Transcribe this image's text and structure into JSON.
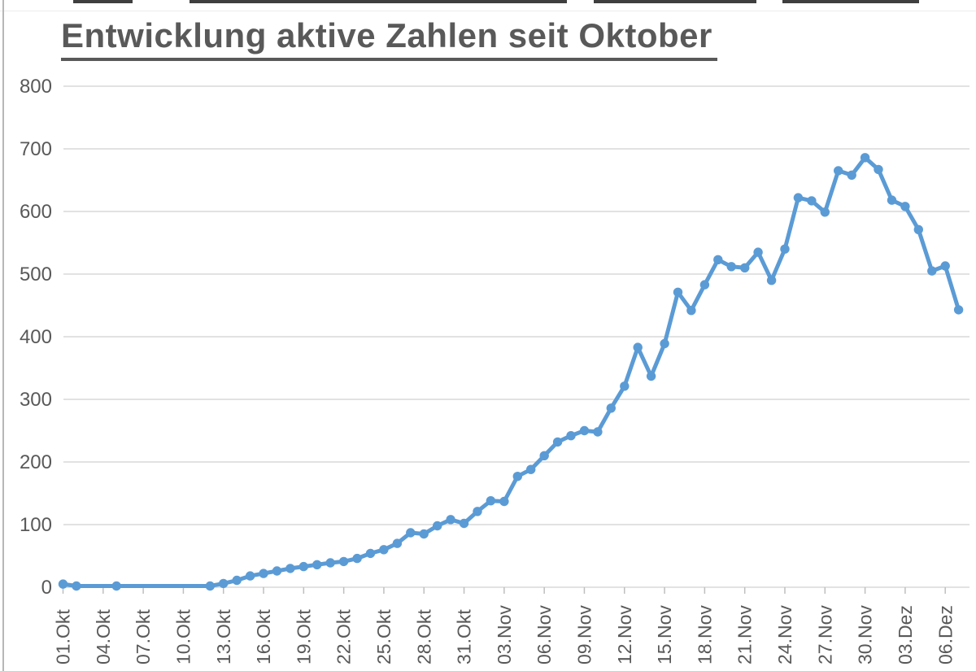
{
  "colors": {
    "series": "#5B9BD5",
    "title_text": "#595959",
    "axis_text": "#595959",
    "gridline": "#d9d9d9",
    "tick_mark": "#bfbfbf"
  },
  "chart_data": {
    "type": "line",
    "title": "Entwicklung aktive Zahlen seit Oktober",
    "legend": "none",
    "grid": "horizontal",
    "ylim": [
      0,
      800
    ],
    "y_ticks": [
      0,
      100,
      200,
      300,
      400,
      500,
      600,
      700,
      800
    ],
    "x_tick_labels": [
      "01.Okt",
      "04.Okt",
      "07.Okt",
      "10.Okt",
      "13.Okt",
      "16.Okt",
      "19.Okt",
      "22.Okt",
      "25.Okt",
      "28.Okt",
      "31.Okt",
      "03.Nov",
      "06.Nov",
      "09.Nov",
      "12.Nov",
      "15.Nov",
      "18.Nov",
      "21.Nov",
      "24.Nov",
      "27.Nov",
      "30.Nov",
      "03.Dez",
      "06.Dez"
    ],
    "x_tick_every_days": 3,
    "series_name": "aktive Zahlen",
    "marker": "circle",
    "dates": [
      "01.Okt",
      "02.Okt",
      "03.Okt",
      "04.Okt",
      "05.Okt",
      "06.Okt",
      "07.Okt",
      "08.Okt",
      "09.Okt",
      "10.Okt",
      "11.Okt",
      "12.Okt",
      "13.Okt",
      "14.Okt",
      "15.Okt",
      "16.Okt",
      "17.Okt",
      "18.Okt",
      "19.Okt",
      "20.Okt",
      "21.Okt",
      "22.Okt",
      "23.Okt",
      "24.Okt",
      "25.Okt",
      "26.Okt",
      "27.Okt",
      "28.Okt",
      "29.Okt",
      "30.Okt",
      "31.Okt",
      "01.Nov",
      "02.Nov",
      "03.Nov",
      "04.Nov",
      "05.Nov",
      "06.Nov",
      "07.Nov",
      "08.Nov",
      "09.Nov",
      "10.Nov",
      "11.Nov",
      "12.Nov",
      "13.Nov",
      "14.Nov",
      "15.Nov",
      "16.Nov",
      "17.Nov",
      "18.Nov",
      "19.Nov",
      "20.Nov",
      "21.Nov",
      "22.Nov",
      "23.Nov",
      "24.Nov",
      "25.Nov",
      "26.Nov",
      "27.Nov",
      "28.Nov",
      "29.Nov",
      "30.Nov",
      "01.Dez",
      "02.Dez",
      "03.Dez",
      "04.Dez",
      "05.Dez",
      "06.Dez",
      "07.Dez"
    ],
    "values": [
      5,
      2,
      null,
      null,
      2,
      null,
      null,
      null,
      null,
      null,
      null,
      2,
      6,
      11,
      18,
      22,
      26,
      30,
      33,
      36,
      39,
      41,
      46,
      54,
      60,
      70,
      87,
      85,
      98,
      108,
      102,
      121,
      138,
      137,
      177,
      188,
      210,
      232,
      242,
      250,
      248,
      286,
      321,
      383,
      337,
      389,
      471,
      442,
      483,
      523,
      512,
      510,
      535,
      490,
      540,
      622,
      617,
      599,
      665,
      658,
      686,
      667,
      618,
      608,
      571,
      505,
      513,
      443
    ]
  }
}
